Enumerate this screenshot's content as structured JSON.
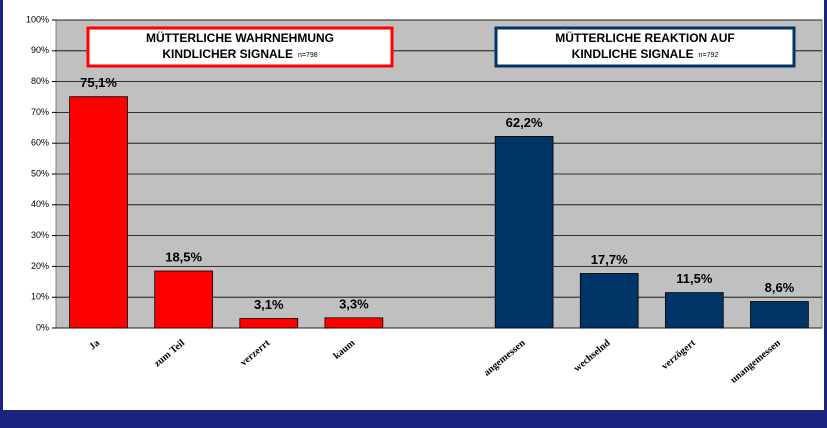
{
  "chart_data": {
    "type": "bar",
    "categories": [
      "Ja",
      "zum Teil",
      "verzerrt",
      "kaum",
      null,
      "angemessen",
      "wechselnd",
      "verzögert",
      "unangemessen"
    ],
    "values": [
      75.1,
      18.5,
      3.1,
      3.3,
      null,
      62.2,
      17.7,
      11.5,
      8.6
    ],
    "value_labels": [
      "75,1%",
      "18,5%",
      "3,1%",
      "3,3%",
      null,
      "62,2%",
      "17,7%",
      "11,5%",
      "8,6%"
    ],
    "colors": [
      "#ff0000",
      "#ff0000",
      "#ff0000",
      "#ff0000",
      null,
      "#003366",
      "#003366",
      "#003366",
      "#003366"
    ],
    "ylim": [
      0,
      100
    ],
    "yticks": [
      {
        "value": 0,
        "label": "0%"
      },
      {
        "value": 10,
        "label": "10%"
      },
      {
        "value": 20,
        "label": "20%"
      },
      {
        "value": 30,
        "label": "30%"
      },
      {
        "value": 40,
        "label": "40%"
      },
      {
        "value": 50,
        "label": "50%"
      },
      {
        "value": 60,
        "label": "60%"
      },
      {
        "value": 70,
        "label": "70%"
      },
      {
        "value": 80,
        "label": "80%"
      },
      {
        "value": 90,
        "label": "90%"
      },
      {
        "value": 100,
        "label": "100%"
      }
    ],
    "grid": true,
    "annotations": [
      {
        "lines": [
          "MÜTTERLICHE WAHRNEHMUNG",
          "KINDLICHER SIGNALE"
        ],
        "note": "n=798",
        "color": "#ff0000"
      },
      {
        "lines": [
          "MÜTTERLICHE REAKTION AUF",
          "KINDLICHE SIGNALE"
        ],
        "note": "n=792",
        "color": "#003366"
      }
    ]
  }
}
